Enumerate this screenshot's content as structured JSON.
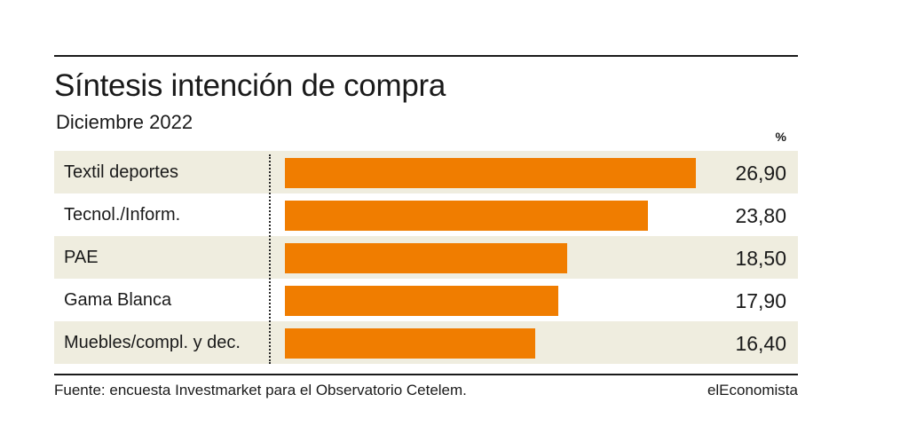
{
  "chart_data": {
    "type": "bar",
    "orientation": "horizontal",
    "title": "Síntesis intención de compra",
    "subtitle": "Diciembre 2022",
    "unit_label": "%",
    "categories": [
      "Textil deportes",
      "Tecnol./Inform.",
      "PAE",
      "Gama Blanca",
      "Muebles/compl. y dec."
    ],
    "values": [
      26.9,
      23.8,
      18.5,
      17.9,
      16.4
    ],
    "value_labels": [
      "26,90",
      "23,80",
      "18,50",
      "17,90",
      "16,40"
    ],
    "xlim": [
      0,
      30
    ],
    "bar_color": "#f07d00",
    "row_shade_color": "#efeddf",
    "grid": false,
    "legend": "none"
  },
  "footer": {
    "source": "Fuente: encuesta Investmarket para el Observatorio Cetelem.",
    "brand": "elEconomista"
  }
}
